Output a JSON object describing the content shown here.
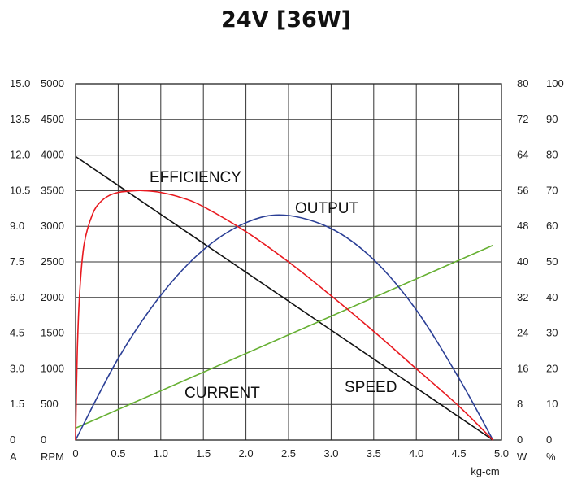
{
  "chart_data": {
    "type": "line",
    "title": "24V [36W]",
    "xlabel": "kg-cm",
    "xlim": [
      0,
      5.0
    ],
    "x_ticks": [
      "0",
      "0.5",
      "1.0",
      "1.5",
      "2.0",
      "2.5",
      "3.0",
      "3.5",
      "4.0",
      "4.5",
      "5.0"
    ],
    "grid": true,
    "axes": {
      "current": {
        "unit": "A",
        "ylim": [
          0,
          15.0
        ],
        "ticks": [
          "0",
          "1.5",
          "3.0",
          "4.5",
          "6.0",
          "7.5",
          "9.0",
          "10.5",
          "12.0",
          "13.5",
          "15.0"
        ]
      },
      "speed": {
        "unit": "RPM",
        "ylim": [
          0,
          5000
        ],
        "ticks": [
          "0",
          "500",
          "1000",
          "1500",
          "2000",
          "2500",
          "3000",
          "3500",
          "4000",
          "4500",
          "5000"
        ]
      },
      "output": {
        "unit": "W",
        "ylim": [
          0,
          80
        ],
        "ticks": [
          "0",
          "8",
          "16",
          "24",
          "32",
          "40",
          "48",
          "56",
          "64",
          "72",
          "80"
        ]
      },
      "efficiency": {
        "unit": "%",
        "ylim": [
          0,
          100
        ],
        "ticks": [
          "0",
          "10",
          "20",
          "30",
          "40",
          "50",
          "60",
          "70",
          "80",
          "90",
          "100"
        ]
      }
    },
    "series": [
      {
        "name": "SPEED",
        "axis": "speed",
        "color": "#111111",
        "x": [
          0,
          4.9
        ],
        "values": [
          3980,
          0
        ]
      },
      {
        "name": "CURRENT",
        "axis": "current",
        "color": "#66b032",
        "x": [
          0,
          4.9
        ],
        "values": [
          0.5,
          8.2
        ]
      },
      {
        "name": "OUTPUT",
        "axis": "output",
        "color": "#2b3f96",
        "x": [
          0,
          0.5,
          1.0,
          1.5,
          2.0,
          2.45,
          3.0,
          3.5,
          4.0,
          4.5,
          4.9
        ],
        "values": [
          0,
          18.3,
          32.5,
          42.7,
          48.8,
          50.5,
          47.5,
          40.5,
          29.2,
          13.9,
          0
        ]
      },
      {
        "name": "EFFICIENCY",
        "axis": "efficiency",
        "color": "#e8191f",
        "x": [
          0,
          0.02,
          0.05,
          0.1,
          0.2,
          0.3,
          0.4,
          0.5,
          0.6,
          0.7,
          0.8,
          1.0,
          1.25,
          1.5,
          2.0,
          2.5,
          3.0,
          3.5,
          4.0,
          4.5,
          4.9
        ],
        "values": [
          0,
          25,
          42,
          55,
          63.5,
          67,
          68.7,
          69.5,
          69.8,
          70,
          70,
          69.5,
          68,
          65.5,
          58.5,
          50,
          40.5,
          30.5,
          20,
          9.5,
          0
        ]
      }
    ],
    "labels": {
      "efficiency": "EFFICIENCY",
      "output": "OUTPUT",
      "current": "CURRENT",
      "speed": "SPEED"
    }
  }
}
